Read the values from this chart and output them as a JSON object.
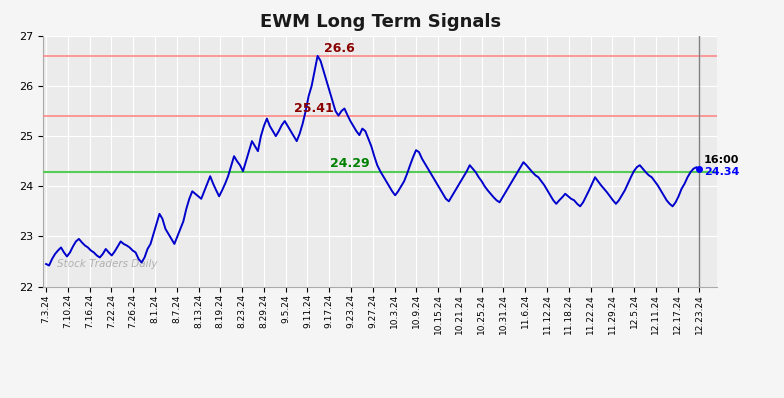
{
  "title": "EWM Long Term Signals",
  "ylim": [
    22,
    27
  ],
  "yticks": [
    22,
    23,
    24,
    25,
    26,
    27
  ],
  "hline_red_upper": 26.6,
  "hline_red_lower": 25.41,
  "hline_green": 24.29,
  "label_red_upper": "26.6",
  "label_red_lower": "25.41",
  "label_green": "24.29",
  "label_end_time": "16:00",
  "label_end_value": "24.34",
  "watermark": "Stock Traders Daily",
  "line_color": "#0000cc",
  "hline_red_color": "#ff8888",
  "hline_green_color": "#55cc55",
  "background_color": "#ececec",
  "xtick_labels": [
    "7.3.24",
    "7.10.24",
    "7.16.24",
    "7.22.24",
    "7.26.24",
    "8.1.24",
    "8.7.24",
    "8.13.24",
    "8.19.24",
    "8.23.24",
    "8.29.24",
    "9.5.24",
    "9.11.24",
    "9.17.24",
    "9.23.24",
    "9.27.24",
    "10.3.24",
    "10.9.24",
    "10.15.24",
    "10.21.24",
    "10.25.24",
    "10.31.24",
    "11.6.24",
    "11.12.24",
    "11.18.24",
    "11.22.24",
    "11.29.24",
    "12.5.24",
    "12.11.24",
    "12.17.24",
    "12.23.24"
  ],
  "price_data": [
    22.45,
    22.42,
    22.55,
    22.65,
    22.72,
    22.78,
    22.68,
    22.6,
    22.68,
    22.8,
    22.9,
    22.95,
    22.88,
    22.82,
    22.78,
    22.72,
    22.68,
    22.62,
    22.58,
    22.65,
    22.75,
    22.68,
    22.62,
    22.7,
    22.8,
    22.9,
    22.85,
    22.82,
    22.78,
    22.72,
    22.68,
    22.55,
    22.48,
    22.58,
    22.75,
    22.85,
    23.05,
    23.25,
    23.45,
    23.35,
    23.15,
    23.05,
    22.95,
    22.85,
    23.0,
    23.15,
    23.3,
    23.55,
    23.75,
    23.9,
    23.85,
    23.8,
    23.75,
    23.9,
    24.05,
    24.2,
    24.05,
    23.92,
    23.8,
    23.92,
    24.05,
    24.2,
    24.4,
    24.6,
    24.5,
    24.42,
    24.3,
    24.5,
    24.7,
    24.9,
    24.8,
    24.7,
    25.0,
    25.2,
    25.35,
    25.2,
    25.1,
    25.0,
    25.1,
    25.22,
    25.3,
    25.2,
    25.1,
    25.0,
    24.9,
    25.05,
    25.25,
    25.5,
    25.8,
    26.0,
    26.3,
    26.6,
    26.5,
    26.3,
    26.1,
    25.9,
    25.7,
    25.5,
    25.41,
    25.5,
    25.55,
    25.42,
    25.3,
    25.2,
    25.1,
    25.02,
    25.15,
    25.1,
    24.95,
    24.8,
    24.6,
    24.42,
    24.3,
    24.2,
    24.1,
    24.0,
    23.9,
    23.82,
    23.9,
    24.0,
    24.1,
    24.25,
    24.42,
    24.58,
    24.72,
    24.68,
    24.55,
    24.45,
    24.35,
    24.25,
    24.15,
    24.05,
    23.95,
    23.85,
    23.75,
    23.7,
    23.8,
    23.9,
    24.0,
    24.1,
    24.2,
    24.3,
    24.42,
    24.35,
    24.28,
    24.18,
    24.1,
    24.0,
    23.92,
    23.85,
    23.78,
    23.72,
    23.68,
    23.78,
    23.88,
    23.98,
    24.08,
    24.18,
    24.28,
    24.38,
    24.48,
    24.42,
    24.35,
    24.28,
    24.22,
    24.18,
    24.1,
    24.02,
    23.92,
    23.82,
    23.72,
    23.65,
    23.72,
    23.78,
    23.85,
    23.8,
    23.75,
    23.72,
    23.65,
    23.6,
    23.68,
    23.8,
    23.92,
    24.05,
    24.18,
    24.1,
    24.02,
    23.95,
    23.88,
    23.8,
    23.72,
    23.65,
    23.72,
    23.82,
    23.92,
    24.05,
    24.18,
    24.3,
    24.38,
    24.42,
    24.35,
    24.28,
    24.22,
    24.18,
    24.1,
    24.02,
    23.92,
    23.82,
    23.72,
    23.65,
    23.6,
    23.68,
    23.8,
    23.95,
    24.05,
    24.18,
    24.28,
    24.35,
    24.38,
    24.34
  ]
}
